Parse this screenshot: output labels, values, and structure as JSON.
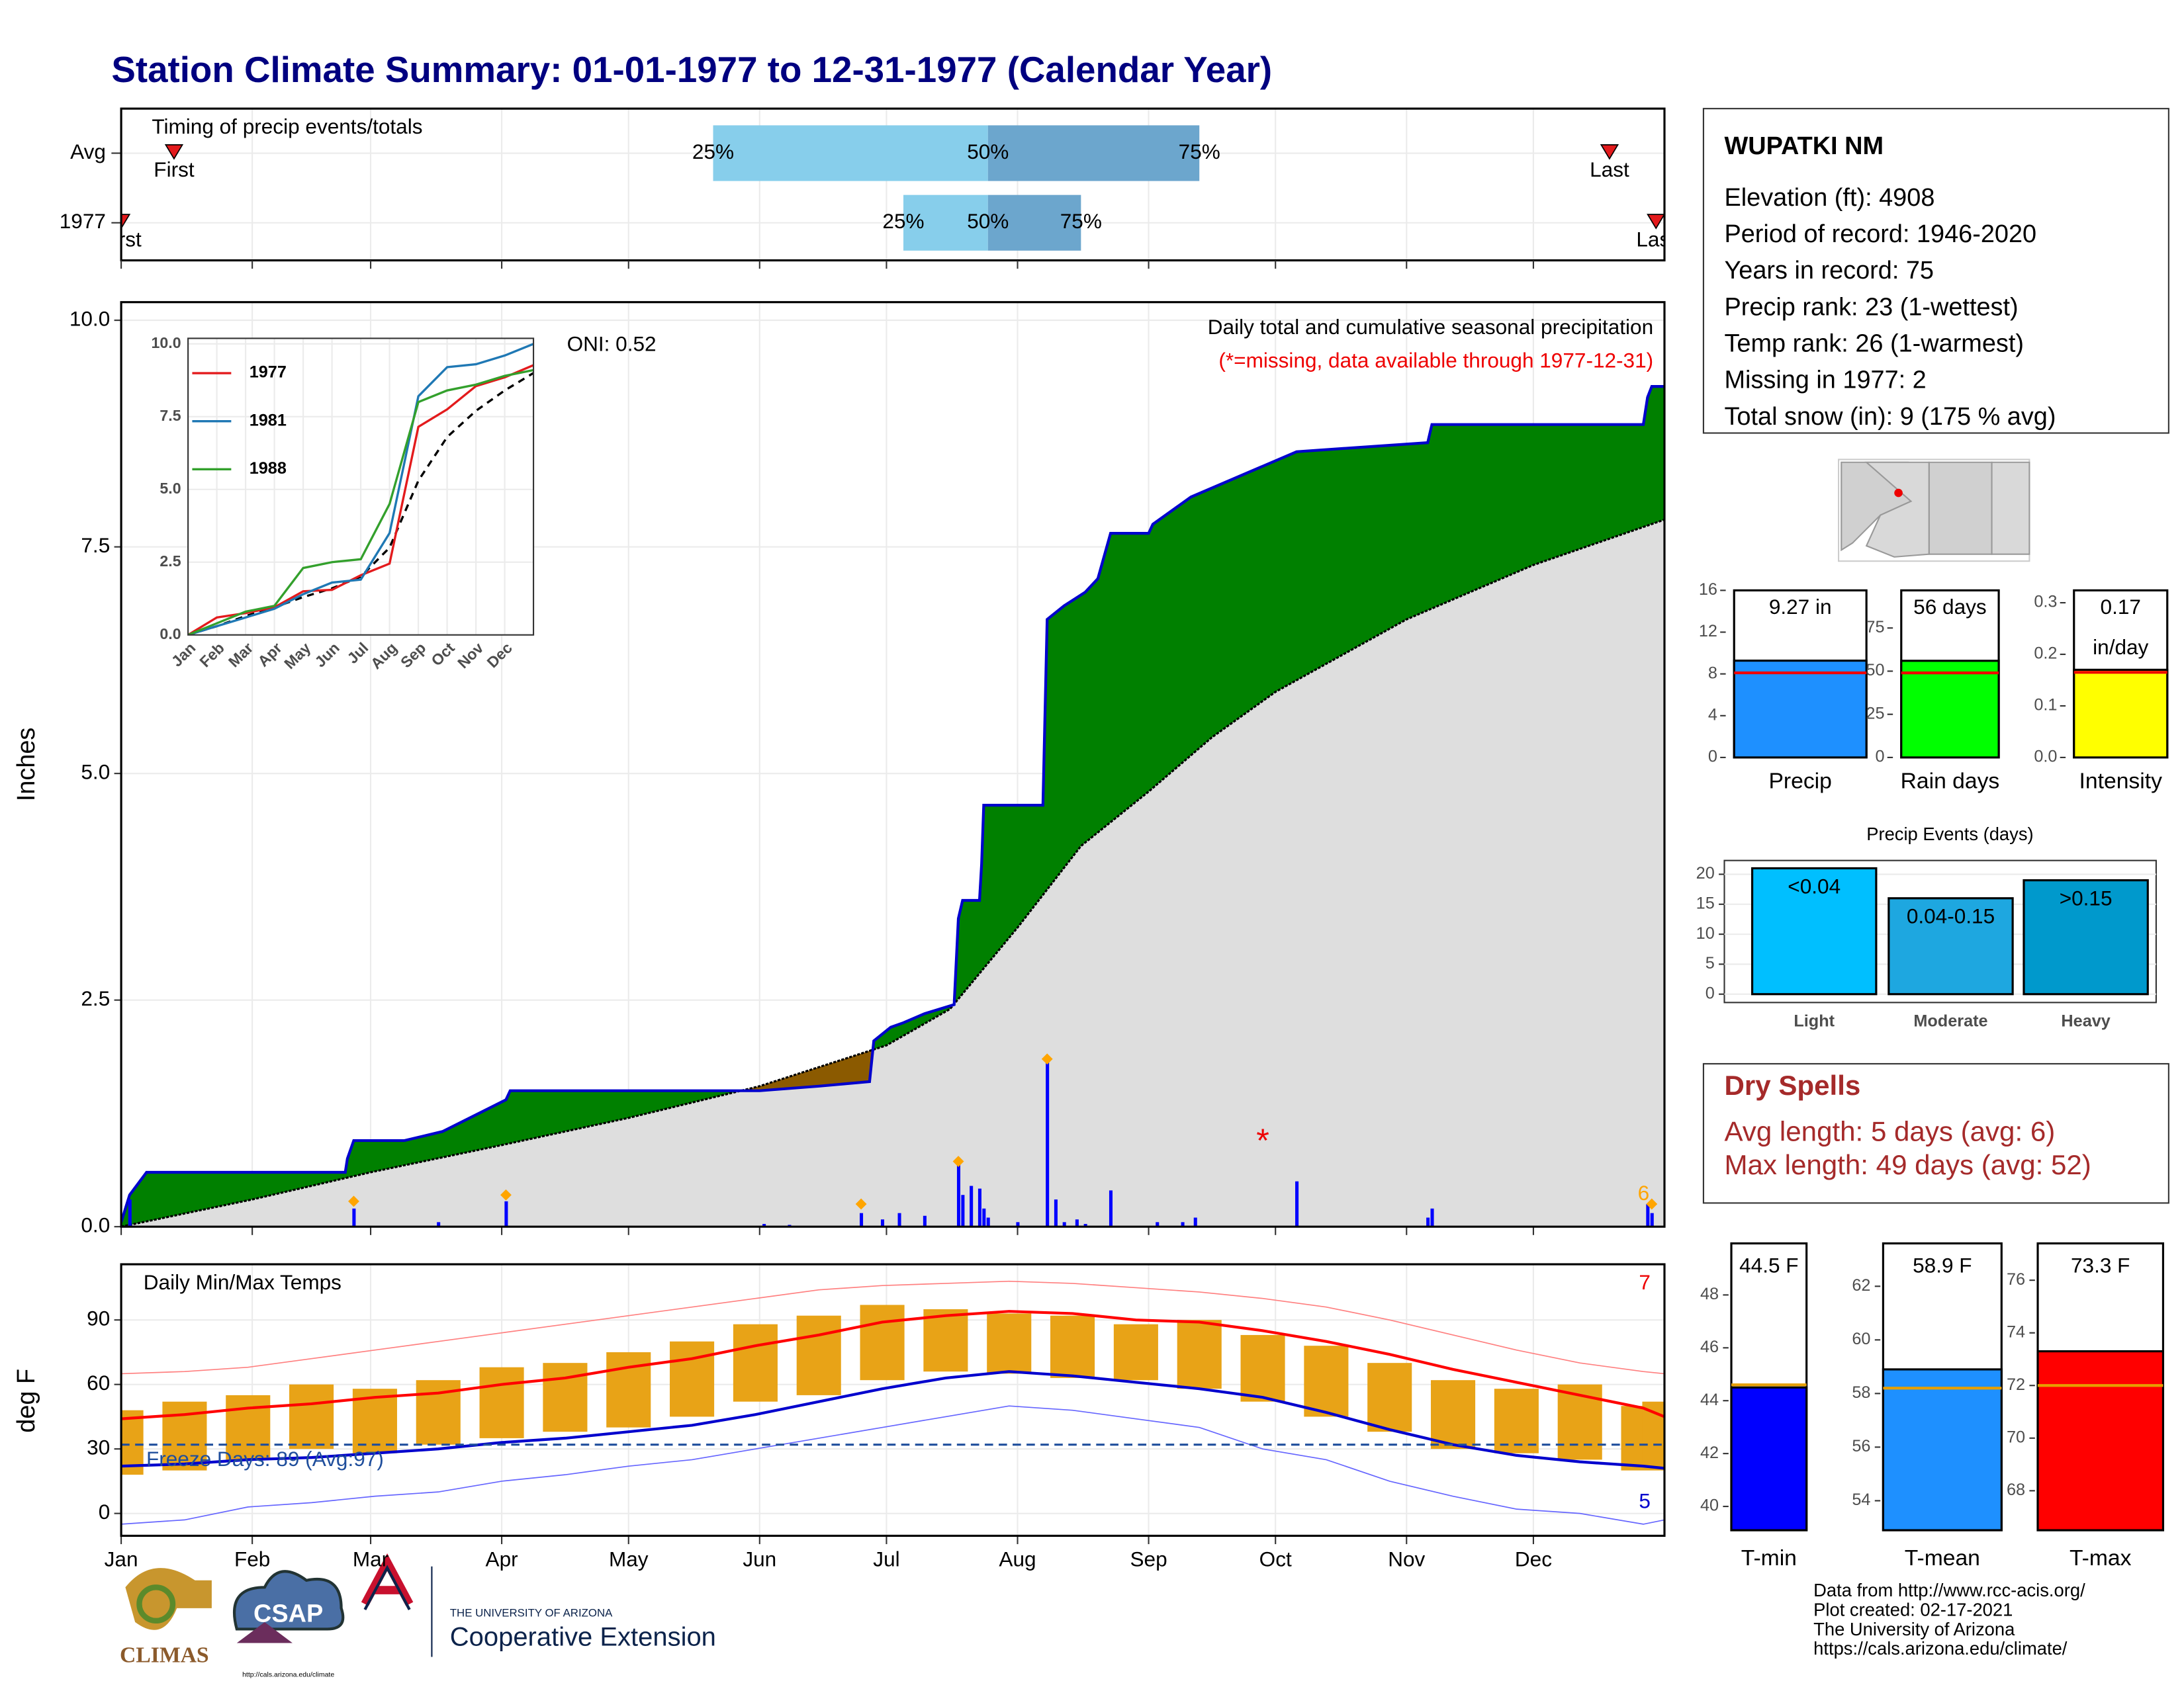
{
  "title": "Station Climate Summary: 01-01-1977 to 12-31-1977 (Calendar Year)",
  "timing": {
    "title": "Timing of precip events/totals",
    "xlim": [
      0,
      365
    ],
    "rows": [
      {
        "label": "Avg",
        "first": 12.5,
        "p25": 140,
        "p50": 205,
        "p75": 255,
        "last": 352
      },
      {
        "label": "1977",
        "first": 0,
        "p25": 185,
        "p50": 205,
        "p75": 227,
        "last": 363
      }
    ],
    "marker_labels": {
      "first": "First",
      "last": "Last",
      "p25": "25%",
      "p50": "50%",
      "p75": "75%"
    },
    "colors": {
      "lower": "#87ceeb",
      "upper": "#6ca6cd",
      "marker": "#e31a1c"
    }
  },
  "precip": {
    "y_label": "Inches",
    "xlim": [
      0,
      365
    ],
    "ylim": [
      0,
      10.2
    ],
    "yticks": [
      {
        "value": 0,
        "label": "0.0"
      },
      {
        "value": 2.5,
        "label": "2.5"
      },
      {
        "value": 5,
        "label": "5.0"
      },
      {
        "value": 7.5,
        "label": "7.5"
      },
      {
        "value": 10,
        "label": "10.0"
      }
    ],
    "oni": "ONI: 0.52",
    "note": "Daily total and cumulative seasonal precipitation",
    "missing_note": "(*=missing, data available through 1977-12-31)",
    "corner_label": "6",
    "missing_mark": {
      "x": 270,
      "value": 1.0,
      "label": "*"
    },
    "colors": {
      "above": "#008000",
      "below": "#8b5a00",
      "base": "#dedede",
      "line": "#0000cd",
      "average": "#000000"
    },
    "cumulative": {
      "x": [
        0,
        1,
        2,
        6,
        53,
        53.5,
        55,
        67,
        76,
        91,
        92,
        151,
        165,
        177,
        178,
        182,
        185,
        190,
        197,
        198,
        199,
        203,
        203.5,
        204,
        218,
        219,
        223,
        228,
        231,
        234,
        243,
        244,
        253,
        278,
        309,
        310,
        360,
        361,
        362,
        365
      ],
      "values": [
        0.05,
        0.2,
        0.35,
        0.6,
        0.6,
        0.75,
        0.95,
        0.95,
        1.05,
        1.4,
        1.5,
        1.5,
        1.55,
        1.6,
        2.05,
        2.2,
        2.25,
        2.35,
        2.45,
        3.4,
        3.6,
        3.6,
        4.0,
        4.65,
        4.65,
        6.7,
        6.85,
        7.0,
        7.15,
        7.65,
        7.65,
        7.75,
        8.05,
        8.55,
        8.65,
        8.85,
        8.85,
        9.15,
        9.27,
        9.27
      ]
    },
    "average": {
      "x": [
        0,
        31,
        59,
        90,
        120,
        151,
        181,
        196,
        212,
        227,
        243,
        258,
        273,
        304,
        334,
        365
      ],
      "values": [
        0,
        0.3,
        0.6,
        0.9,
        1.2,
        1.55,
        2.0,
        2.4,
        3.3,
        4.2,
        4.8,
        5.4,
        5.9,
        6.7,
        7.3,
        7.8
      ]
    },
    "daily": {
      "color": "#0000ff",
      "x": [
        2,
        55,
        75,
        91,
        152,
        158,
        175,
        180,
        184,
        190,
        198,
        199,
        201,
        203,
        204,
        205,
        212,
        219,
        221,
        223,
        226,
        228,
        234,
        245,
        251,
        254,
        278,
        309,
        310,
        361,
        362
      ],
      "values": [
        0.3,
        0.2,
        0.05,
        0.28,
        0.03,
        0.02,
        0.15,
        0.08,
        0.15,
        0.12,
        0.7,
        0.35,
        0.45,
        0.42,
        0.2,
        0.1,
        0.05,
        1.85,
        0.3,
        0.05,
        0.08,
        0.03,
        0.4,
        0.05,
        0.05,
        0.1,
        0.5,
        0.1,
        0.2,
        0.25,
        0.15
      ]
    },
    "records": {
      "color": "#ffa500",
      "x": [
        55,
        91,
        175,
        198,
        219,
        362
      ],
      "values": [
        0.28,
        0.35,
        0.25,
        0.72,
        1.85,
        0.25
      ]
    }
  },
  "inset": {
    "xlim": [
      0,
      12
    ],
    "ylim": [
      0,
      10.19
    ],
    "xticks": [
      {
        "value": 0,
        "label": "Jan"
      },
      {
        "value": 1,
        "label": "Feb"
      },
      {
        "value": 2,
        "label": "Mar"
      },
      {
        "value": 3,
        "label": "Apr"
      },
      {
        "value": 4,
        "label": "May"
      },
      {
        "value": 5,
        "label": "Jun"
      },
      {
        "value": 6,
        "label": "Jul"
      },
      {
        "value": 7,
        "label": "Aug"
      },
      {
        "value": 8,
        "label": "Sep"
      },
      {
        "value": 9,
        "label": "Oct"
      },
      {
        "value": 10,
        "label": "Nov"
      },
      {
        "value": 11,
        "label": "Dec"
      }
    ],
    "yticks": [
      {
        "value": 0,
        "label": "0.0"
      },
      {
        "value": 2.5,
        "label": "2.5"
      },
      {
        "value": 5,
        "label": "5.0"
      },
      {
        "value": 7.5,
        "label": "7.5"
      },
      {
        "value": 10,
        "label": "10.0"
      }
    ],
    "x": [
      0,
      1,
      2,
      3,
      4,
      5,
      6,
      7,
      8,
      9,
      10,
      11,
      12
    ],
    "series": [
      {
        "name": "1977",
        "color": "#e31a1c",
        "values": [
          0,
          0.6,
          0.75,
          0.95,
          1.5,
          1.55,
          2.05,
          2.45,
          7.15,
          7.75,
          8.55,
          8.85,
          9.27
        ]
      },
      {
        "name": "1981",
        "color": "#1f78b4",
        "values": [
          0,
          0.3,
          0.6,
          0.9,
          1.4,
          1.8,
          1.9,
          3.5,
          8.2,
          9.2,
          9.3,
          9.6,
          10.0
        ]
      },
      {
        "name": "1988",
        "color": "#33a02c",
        "values": [
          0,
          0.4,
          0.8,
          1.0,
          2.3,
          2.5,
          2.6,
          4.5,
          8.0,
          8.4,
          8.6,
          8.9,
          9.1
        ]
      }
    ],
    "average": [
      0,
      0.3,
      0.65,
      0.95,
      1.3,
      1.6,
      2.0,
      3.0,
      5.3,
      6.8,
      7.7,
      8.4,
      9.0
    ]
  },
  "temps": {
    "title": "Daily Min/Max Temps",
    "y_label": "deg F",
    "xlim": [
      0,
      365
    ],
    "ylim": [
      -10.4,
      115.9
    ],
    "yticks": [
      0,
      30,
      60,
      90
    ],
    "xticks": [
      {
        "value": 0,
        "label": "Jan"
      },
      {
        "value": 31,
        "label": "Feb"
      },
      {
        "value": 59,
        "label": "Mar"
      },
      {
        "value": 90,
        "label": "Apr"
      },
      {
        "value": 120,
        "label": "May"
      },
      {
        "value": 151,
        "label": "Jun"
      },
      {
        "value": 181,
        "label": "Jul"
      },
      {
        "value": 212,
        "label": "Aug"
      },
      {
        "value": 243,
        "label": "Sep"
      },
      {
        "value": 273,
        "label": "Oct"
      },
      {
        "value": 304,
        "label": "Nov"
      },
      {
        "value": 334,
        "label": "Dec"
      }
    ],
    "freeze": {
      "value": 32,
      "label": "Freeze Days: 89 (Avg:97)"
    },
    "max_count": "7",
    "min_count": "5",
    "x": [
      0,
      15,
      30,
      45,
      60,
      75,
      90,
      105,
      120,
      135,
      150,
      165,
      180,
      195,
      210,
      225,
      240,
      255,
      270,
      285,
      300,
      315,
      330,
      345,
      360,
      365
    ],
    "avg_max": [
      44,
      46,
      49,
      51,
      54,
      56,
      60,
      63,
      68,
      72,
      78,
      83,
      89,
      92,
      94,
      93,
      90,
      89,
      85,
      80,
      74,
      67,
      61,
      55,
      49,
      45
    ],
    "avg_min": [
      22,
      23,
      25,
      26,
      28,
      30,
      33,
      35,
      38,
      41,
      46,
      52,
      58,
      63,
      66,
      64,
      61,
      58,
      54,
      47,
      39,
      32,
      27,
      24,
      22,
      21
    ],
    "rec_max": [
      65,
      66,
      68,
      72,
      76,
      80,
      84,
      88,
      92,
      96,
      100,
      104,
      106,
      107,
      108,
      107,
      105,
      103,
      100,
      96,
      90,
      83,
      76,
      70,
      66,
      65
    ],
    "rec_min": [
      -5,
      -3,
      3,
      5,
      8,
      10,
      15,
      18,
      22,
      25,
      30,
      35,
      40,
      45,
      50,
      48,
      44,
      40,
      30,
      25,
      15,
      8,
      2,
      0,
      -5,
      -3
    ],
    "obs_max": [
      48,
      52,
      55,
      60,
      58,
      62,
      68,
      70,
      75,
      80,
      88,
      92,
      97,
      95,
      93,
      92,
      88,
      90,
      83,
      78,
      70,
      62,
      58,
      60,
      50,
      52
    ],
    "obs_min": [
      18,
      20,
      25,
      30,
      28,
      32,
      35,
      38,
      40,
      45,
      52,
      55,
      62,
      66,
      65,
      63,
      62,
      58,
      52,
      45,
      38,
      30,
      28,
      25,
      20,
      22
    ],
    "colors": {
      "avg_max": "#ff0000",
      "avg_min": "#0000cd",
      "rec_max": "#ff8080",
      "rec_min": "#6666ff",
      "obs": "#e8a317",
      "freeze": "#1f4e9c"
    }
  },
  "station": {
    "name": "WUPATKI NM",
    "lines": [
      "Elevation (ft): 4908",
      "Period of record: 1946-2020",
      "Years in record: 75",
      "Precip rank: 23 (1-wettest)",
      "Temp rank: 26 (1-warmest)",
      "Missing in 1977: 2",
      "Total snow (in): 9 (175 % avg)"
    ]
  },
  "summary_bars": [
    {
      "label": "Precip",
      "value": 9.27,
      "value_label": "9.27 in",
      "avg": 8.1,
      "color": "#1e90ff",
      "ylim": [
        0,
        16
      ],
      "yticks": [
        0,
        4,
        8,
        12,
        16
      ]
    },
    {
      "label": "Rain days",
      "value": 56,
      "value_label": "56 days",
      "avg": 49,
      "color": "#00ff00",
      "ylim": [
        0,
        96.8
      ],
      "yticks": [
        0,
        25,
        50,
        75
      ]
    },
    {
      "label": "Intensity",
      "value": 0.17,
      "value_label": "0.17",
      "unit": "in/day",
      "avg": 0.165,
      "color": "#ffff00",
      "ylim": [
        0,
        0.324
      ],
      "yticks": [
        {
          "value": 0,
          "label": "0.0"
        },
        {
          "value": 0.1,
          "label": "0.1"
        },
        {
          "value": 0.2,
          "label": "0.2"
        },
        {
          "value": 0.3,
          "label": "0.3"
        }
      ]
    }
  ],
  "events": {
    "title": "Precip Events (days)",
    "categories": [
      "Light",
      "Moderate",
      "Heavy"
    ],
    "bin_labels": [
      "<0.04",
      "0.04-0.15",
      ">0.15"
    ],
    "values": [
      21,
      16,
      19
    ],
    "colors": [
      "#00bfff",
      "#1ea7e0",
      "#0099cc"
    ],
    "ylim": [
      0,
      22.3
    ],
    "yticks": [
      0,
      5,
      10,
      15,
      20
    ]
  },
  "dry_spells": {
    "title": "Dry Spells",
    "lines": [
      "Avg length: 5 days (avg: 6)",
      "Max length: 49 days (avg: 52)"
    ]
  },
  "temp_bars": [
    {
      "label": "T-min",
      "value": 44.5,
      "value_label": "44.5 F",
      "avg": 44.6,
      "color": "#0000ff",
      "ylim": [
        39.1,
        49.95
      ],
      "yticks": [
        40,
        42,
        44,
        46,
        48
      ]
    },
    {
      "label": "T-mean",
      "value": 58.9,
      "value_label": "58.9 F",
      "avg": 58.2,
      "color": "#1e90ff",
      "ylim": [
        52.9,
        63.6
      ],
      "yticks": [
        54,
        56,
        58,
        60,
        62
      ]
    },
    {
      "label": "T-max",
      "value": 73.3,
      "value_label": "73.3 F",
      "avg": 72.0,
      "color": "#ff0000",
      "ylim": [
        66.5,
        77.4
      ],
      "yticks": [
        68,
        70,
        72,
        74,
        76
      ]
    }
  ],
  "footer": [
    "Data from http://www.rcc-acis.org/",
    "Plot created: 02-17-2021",
    "The University of Arizona",
    "https://cals.arizona.edu/climate/"
  ],
  "logos": {
    "climas": "CLIMAS",
    "csap": "CSAP",
    "csap_url": "http://cals.arizona.edu/climate",
    "ua_small": "THE UNIVERSITY OF ARIZONA",
    "ua_big": "Cooperative Extension"
  }
}
